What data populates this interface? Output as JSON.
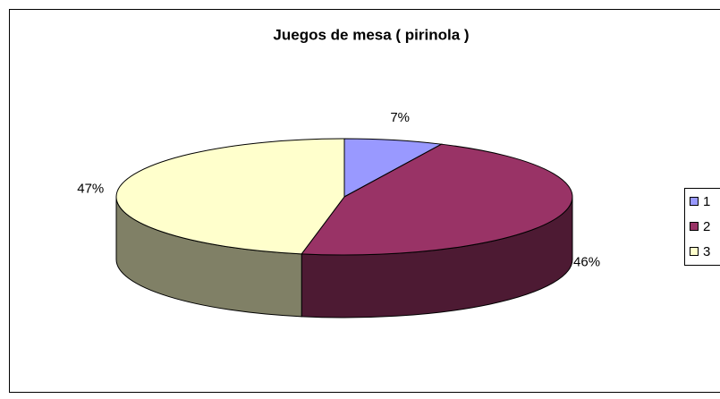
{
  "chart_data": {
    "type": "pie",
    "title": "Juegos de mesa ( pirinola )",
    "categories": [
      "1",
      "2",
      "3"
    ],
    "values": [
      7,
      46,
      47
    ],
    "value_labels": [
      "7%",
      "46%",
      "47%"
    ],
    "colors": [
      "#9999ff",
      "#993366",
      "#ffffcc"
    ],
    "legend": "right"
  }
}
